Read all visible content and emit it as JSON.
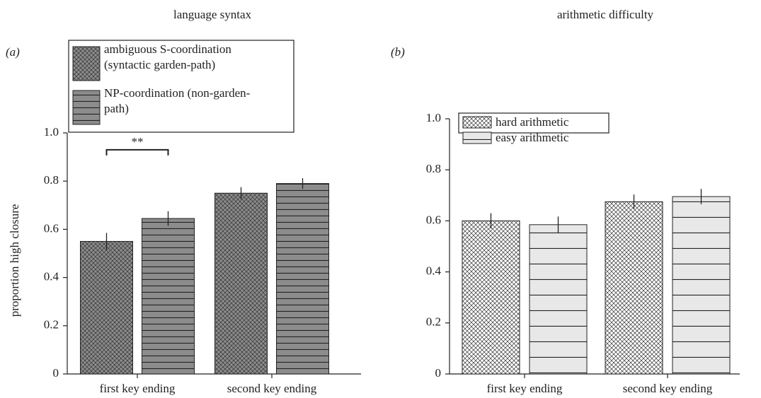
{
  "chart_data": [
    {
      "type": "bar",
      "panel": "(a)",
      "title": "language syntax",
      "ylabel": "proportion high closure",
      "categories": [
        "first key ending",
        "second key ending"
      ],
      "series": [
        {
          "name": "ambiguous S-coordination (syntactic garden-path)",
          "color": "#8c8c8c",
          "hatch": "cross",
          "values": [
            0.55,
            0.75
          ],
          "errors": [
            0.035,
            0.025
          ]
        },
        {
          "name": "NP-coordination (non-garden-path)",
          "color": "#8c8c8c",
          "hatch": "lines",
          "values": [
            0.645,
            0.79
          ],
          "errors": [
            0.03,
            0.022
          ]
        }
      ],
      "annotation": "**",
      "ylim": [
        0,
        1
      ],
      "yticks": [
        0,
        0.2,
        0.4,
        0.6,
        0.8,
        {
          "value": 1,
          "label": "1.0"
        }
      ]
    },
    {
      "type": "bar",
      "panel": "(b)",
      "title": "arithmetic difficulty",
      "categories": [
        "first key ending",
        "second key ending"
      ],
      "series": [
        {
          "name": "hard arithmetic",
          "color": "#ffffff",
          "hatch": "cross",
          "values": [
            0.6,
            0.675
          ],
          "errors": [
            0.03,
            0.028
          ]
        },
        {
          "name": "easy arithmetic",
          "color": "#e8e8e8",
          "hatch": "lines",
          "values": [
            0.585,
            0.695
          ],
          "errors": [
            0.032,
            0.03
          ]
        }
      ],
      "ylim": [
        0,
        1
      ],
      "yticks": [
        0,
        0.2,
        0.4,
        0.6,
        0.8,
        {
          "value": 1,
          "label": "1.0"
        }
      ]
    }
  ]
}
